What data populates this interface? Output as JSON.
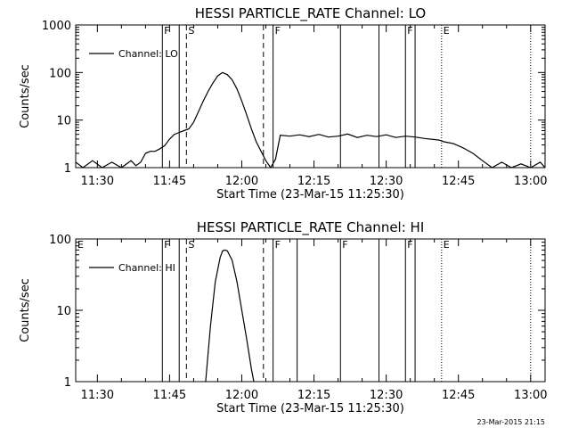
{
  "footer_text": "23-Mar-2015 21:15",
  "chart_data": [
    {
      "type": "line",
      "title": "HESSI PARTICLE_RATE Channel: LO",
      "xlabel": "Start Time (23-Mar-15 11:25:30)",
      "ylabel": "Counts/sec",
      "yscale": "log",
      "ylim": [
        1,
        1000
      ],
      "xlim": [
        "11:25:30",
        "13:03:00"
      ],
      "xticks": [
        "11:30",
        "11:45",
        "12:00",
        "12:15",
        "12:30",
        "12:45",
        "13:00"
      ],
      "yticks": [
        "1",
        "10",
        "100",
        "1000"
      ],
      "legend": {
        "label": "Channel: LO",
        "placement": "top-left"
      },
      "series": [
        {
          "name": "Channel: LO",
          "x": [
            "11:25:30",
            "11:27:00",
            "11:29:00",
            "11:31:00",
            "11:33:00",
            "11:35:00",
            "11:37:00",
            "11:38:00",
            "11:39:00",
            "11:40:00",
            "11:41:00",
            "11:42:00",
            "11:43:00",
            "11:44:00",
            "11:45:00",
            "11:46:00",
            "11:47:00",
            "11:48:00",
            "11:49:00",
            "11:50:00",
            "11:51:00",
            "11:52:00",
            "11:53:00",
            "11:54:00",
            "11:55:00",
            "11:56:00",
            "11:57:00",
            "11:58:00",
            "11:59:00",
            "12:00:00",
            "12:01:00",
            "12:02:00",
            "12:03:00",
            "12:04:00",
            "12:05:00",
            "12:06:00",
            "12:07:00",
            "12:08:00",
            "12:10:00",
            "12:12:00",
            "12:14:00",
            "12:16:00",
            "12:18:00",
            "12:20:00",
            "12:22:00",
            "12:24:00",
            "12:26:00",
            "12:28:00",
            "12:30:00",
            "12:32:00",
            "12:34:00",
            "12:36:00",
            "12:38:00",
            "12:40:00",
            "12:41:00",
            "12:42:00",
            "12:44:00",
            "12:46:00",
            "12:48:00",
            "12:50:00",
            "12:52:00",
            "12:54:00",
            "12:56:00",
            "12:58:00",
            "13:00:00",
            "13:02:00",
            "13:03:00"
          ],
          "y": [
            1.3,
            1.0,
            1.4,
            1.0,
            1.3,
            1.0,
            1.4,
            1.1,
            1.3,
            2.0,
            2.2,
            2.2,
            2.5,
            2.9,
            4.0,
            5.0,
            5.5,
            6.0,
            6.5,
            9.0,
            15,
            25,
            40,
            60,
            85,
            100,
            90,
            70,
            45,
            25,
            13,
            6.5,
            3.5,
            2.2,
            1.4,
            1.0,
            1.5,
            4.8,
            4.6,
            4.9,
            4.5,
            5.0,
            4.4,
            4.6,
            5.1,
            4.3,
            4.8,
            4.5,
            4.9,
            4.3,
            4.6,
            4.4,
            4.1,
            3.9,
            3.8,
            3.5,
            3.2,
            2.6,
            2.0,
            1.4,
            1.0,
            1.3,
            1.0,
            1.2,
            1.0,
            1.3,
            1.0
          ]
        }
      ],
      "annotations": [
        {
          "time": "11:43:30",
          "style": "solid",
          "label": "F"
        },
        {
          "time": "11:47:00",
          "style": "solid",
          "label": ""
        },
        {
          "time": "11:48:30",
          "style": "dashed",
          "label": "S"
        },
        {
          "time": "12:04:30",
          "style": "dashed",
          "label": ""
        },
        {
          "time": "12:06:30",
          "style": "solid",
          "label": "F"
        },
        {
          "time": "12:20:30",
          "style": "solid",
          "label": ""
        },
        {
          "time": "12:28:30",
          "style": "solid",
          "label": ""
        },
        {
          "time": "12:34:00",
          "style": "solid",
          "label": "F"
        },
        {
          "time": "12:36:00",
          "style": "solid",
          "label": ""
        },
        {
          "time": "12:41:30",
          "style": "dotted",
          "label": "E"
        },
        {
          "time": "13:00:00",
          "style": "dotted",
          "label": ""
        }
      ]
    },
    {
      "type": "line",
      "title": "HESSI PARTICLE_RATE Channel: HI",
      "xlabel": "Start Time (23-Mar-15 11:25:30)",
      "ylabel": "Counts/sec",
      "yscale": "log",
      "ylim": [
        1,
        100
      ],
      "xlim": [
        "11:25:30",
        "13:03:00"
      ],
      "xticks": [
        "11:30",
        "11:45",
        "12:00",
        "12:15",
        "12:30",
        "12:45",
        "13:00"
      ],
      "yticks": [
        "1",
        "10",
        "100"
      ],
      "legend": {
        "label": "Channel: HI",
        "placement": "top-left"
      },
      "corner_label": "E",
      "series": [
        {
          "name": "Channel: HI",
          "x": [
            "11:52:30",
            "11:53:30",
            "11:54:30",
            "11:55:30",
            "11:56:00",
            "11:56:30",
            "11:57:00",
            "11:58:00",
            "11:59:00",
            "12:00:00",
            "12:01:00",
            "12:02:00",
            "12:02:30"
          ],
          "y": [
            1.0,
            6.0,
            25,
            55,
            68,
            70,
            68,
            50,
            25,
            10,
            4,
            1.5,
            1.0
          ]
        }
      ],
      "annotations": [
        {
          "time": "11:43:30",
          "style": "solid",
          "label": "F"
        },
        {
          "time": "11:47:00",
          "style": "solid",
          "label": ""
        },
        {
          "time": "11:48:30",
          "style": "dashed",
          "label": "S"
        },
        {
          "time": "12:04:30",
          "style": "dashed",
          "label": ""
        },
        {
          "time": "12:06:30",
          "style": "solid",
          "label": "F"
        },
        {
          "time": "12:11:30",
          "style": "solid",
          "label": ""
        },
        {
          "time": "12:20:30",
          "style": "solid",
          "label": "F"
        },
        {
          "time": "12:28:30",
          "style": "solid",
          "label": ""
        },
        {
          "time": "12:34:00",
          "style": "solid",
          "label": "F"
        },
        {
          "time": "12:36:00",
          "style": "solid",
          "label": ""
        },
        {
          "time": "12:41:30",
          "style": "dotted",
          "label": "E"
        },
        {
          "time": "13:00:00",
          "style": "dotted",
          "label": ""
        }
      ]
    }
  ]
}
